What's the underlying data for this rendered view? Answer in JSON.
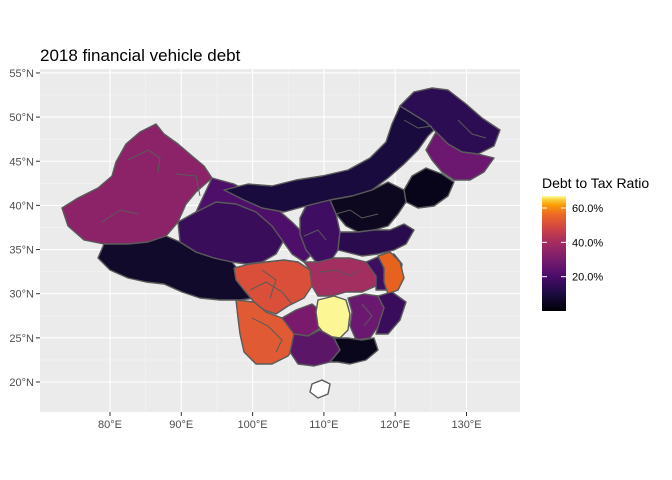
{
  "title": "2018 financial vehicle debt",
  "x_ticks": [
    {
      "lon": 80,
      "label": "80°E"
    },
    {
      "lon": 90,
      "label": "90°E"
    },
    {
      "lon": 100,
      "label": "100°E"
    },
    {
      "lon": 110,
      "label": "110°E"
    },
    {
      "lon": 120,
      "label": "120°E"
    },
    {
      "lon": 130,
      "label": "130°E"
    }
  ],
  "y_ticks": [
    {
      "lat": 20,
      "label": "20°N"
    },
    {
      "lat": 25,
      "label": "25°N"
    },
    {
      "lat": 30,
      "label": "30°N"
    },
    {
      "lat": 35,
      "label": "35°N"
    },
    {
      "lat": 40,
      "label": "40°N"
    },
    {
      "lat": 45,
      "label": "45°N"
    },
    {
      "lat": 50,
      "label": "50°N"
    },
    {
      "lat": 55,
      "label": "55°N"
    }
  ],
  "legend": {
    "title": "Debt to Tax Ratio",
    "labels": [
      {
        "value": 20,
        "text": "20.0%"
      },
      {
        "value": 40,
        "text": "40.0%"
      },
      {
        "value": 60,
        "text": "60.0%"
      }
    ]
  },
  "colors": {
    "panel": "#ebebeb",
    "grid_major": "#ffffff",
    "grid_minor": "#f5f5f5",
    "border": "#595959"
  }
}
